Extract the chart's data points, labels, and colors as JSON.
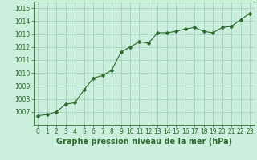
{
  "x": [
    0,
    1,
    2,
    3,
    4,
    5,
    6,
    7,
    8,
    9,
    10,
    11,
    12,
    13,
    14,
    15,
    16,
    17,
    18,
    19,
    20,
    21,
    22,
    23
  ],
  "y": [
    1006.7,
    1006.8,
    1007.0,
    1007.6,
    1007.7,
    1008.7,
    1009.6,
    1009.8,
    1010.2,
    1011.6,
    1012.0,
    1012.4,
    1012.3,
    1013.1,
    1013.1,
    1013.2,
    1013.4,
    1013.5,
    1013.2,
    1013.1,
    1013.5,
    1013.6,
    1014.1,
    1014.6
  ],
  "ylim": [
    1006.0,
    1015.5
  ],
  "xlim": [
    -0.5,
    23.5
  ],
  "yticks": [
    1007,
    1008,
    1009,
    1010,
    1011,
    1012,
    1013,
    1014,
    1015
  ],
  "xticks": [
    0,
    1,
    2,
    3,
    4,
    5,
    6,
    7,
    8,
    9,
    10,
    11,
    12,
    13,
    14,
    15,
    16,
    17,
    18,
    19,
    20,
    21,
    22,
    23
  ],
  "xlabel": "Graphe pression niveau de la mer (hPa)",
  "line_color": "#2d6a2d",
  "marker": "D",
  "marker_size": 2.5,
  "bg_color": "#cceedd",
  "grid_color": "#99ccbb",
  "xlabel_fontsize": 7.0,
  "tick_fontsize": 5.5,
  "tick_color": "#2d6a2d",
  "xlabel_color": "#2d6a2d",
  "xlabel_fontweight": "bold"
}
